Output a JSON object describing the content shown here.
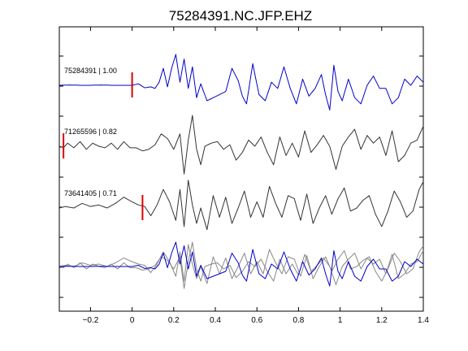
{
  "chart_data": {
    "type": "line",
    "title": "75284391.NC.JFP.EHZ",
    "xlabel": "",
    "ylabel": "",
    "xlim": [
      -0.35,
      1.4
    ],
    "x_ticks": [
      -0.2,
      0,
      0.2,
      0.4,
      0.6,
      0.8,
      1,
      1.2,
      1.4
    ],
    "x_tick_labels": [
      "−0.2",
      "0",
      "0.2",
      "0.4",
      "0.6",
      "0.8",
      "1",
      "1.2",
      "1.4"
    ],
    "grid": false,
    "legend": "none",
    "colors": {
      "reference": "#0000cc",
      "trace": "#333333",
      "overlay": "#888888",
      "pick": "#dd0000"
    },
    "sample_step": 0.01,
    "series": [
      {
        "label": "75284391 | 1.00",
        "color": "#0000cc",
        "pick_time": 0.0,
        "x": [
          -0.35,
          -0.3,
          -0.25,
          -0.2,
          -0.15,
          -0.1,
          -0.05,
          0.0,
          0.03,
          0.06,
          0.09,
          0.11,
          0.13,
          0.15,
          0.17,
          0.19,
          0.21,
          0.23,
          0.25,
          0.27,
          0.29,
          0.31,
          0.33,
          0.36,
          0.39,
          0.42,
          0.45,
          0.48,
          0.51,
          0.53,
          0.55,
          0.58,
          0.61,
          0.64,
          0.67,
          0.7,
          0.73,
          0.76,
          0.79,
          0.82,
          0.85,
          0.88,
          0.91,
          0.93,
          0.95,
          0.97,
          0.99,
          1.01,
          1.04,
          1.07,
          1.1,
          1.13,
          1.16,
          1.19,
          1.22,
          1.25,
          1.28,
          1.31,
          1.34,
          1.37,
          1.4
        ],
        "y": [
          0.0,
          0.01,
          0.0,
          0.0,
          0.01,
          0.0,
          0.0,
          0.0,
          0.05,
          -0.08,
          -0.05,
          -0.1,
          0.1,
          0.55,
          -0.05,
          0.55,
          1.0,
          0.1,
          0.85,
          -0.1,
          0.6,
          -0.4,
          0.05,
          -0.5,
          -0.4,
          -0.3,
          -0.2,
          0.55,
          0.15,
          -0.35,
          -0.6,
          0.7,
          -0.3,
          -0.5,
          0.1,
          -0.1,
          0.6,
          -0.1,
          -0.6,
          0.2,
          -0.35,
          -0.1,
          0.35,
          -0.3,
          -0.8,
          0.65,
          -0.2,
          -0.5,
          0.2,
          -0.4,
          -0.6,
          0.0,
          0.3,
          -0.1,
          -0.1,
          -0.6,
          -0.4,
          0.2,
          0.0,
          0.3,
          0.1
        ]
      },
      {
        "label": "71265596 | 0.82",
        "color": "#333333",
        "pick_time": -0.33,
        "x": [
          -0.35,
          -0.33,
          -0.31,
          -0.28,
          -0.25,
          -0.22,
          -0.19,
          -0.16,
          -0.13,
          -0.1,
          -0.07,
          -0.04,
          -0.01,
          0.02,
          0.05,
          0.08,
          0.11,
          0.14,
          0.17,
          0.2,
          0.23,
          0.25,
          0.27,
          0.29,
          0.31,
          0.33,
          0.35,
          0.38,
          0.41,
          0.44,
          0.47,
          0.5,
          0.53,
          0.56,
          0.59,
          0.62,
          0.65,
          0.68,
          0.71,
          0.74,
          0.77,
          0.8,
          0.83,
          0.86,
          0.89,
          0.92,
          0.95,
          0.98,
          1.01,
          1.04,
          1.07,
          1.1,
          1.13,
          1.16,
          1.19,
          1.22,
          1.25,
          1.28,
          1.31,
          1.34,
          1.37,
          1.4
        ],
        "y": [
          0.0,
          -0.05,
          0.1,
          -0.05,
          0.15,
          -0.1,
          0.1,
          0.0,
          -0.05,
          0.1,
          -0.1,
          0.15,
          -0.05,
          -0.05,
          -0.15,
          -0.1,
          0.05,
          0.4,
          0.25,
          -0.1,
          0.4,
          -0.9,
          0.2,
          1.0,
          -0.1,
          -0.6,
          0.0,
          0.1,
          0.15,
          -0.1,
          0.05,
          -0.45,
          -0.2,
          0.2,
          0.0,
          0.3,
          -0.2,
          -0.6,
          0.3,
          -0.3,
          0.1,
          -0.35,
          0.5,
          -0.2,
          0.05,
          0.35,
          0.0,
          -0.75,
          0.0,
          0.3,
          0.55,
          -0.1,
          0.35,
          0.1,
          0.3,
          -0.3,
          0.5,
          -0.5,
          -0.3,
          0.1,
          0.2,
          0.65
        ]
      },
      {
        "label": "73641405 | 0.71",
        "color": "#333333",
        "pick_time": 0.05,
        "x": [
          -0.35,
          -0.32,
          -0.28,
          -0.24,
          -0.2,
          -0.16,
          -0.12,
          -0.08,
          -0.04,
          0.0,
          0.03,
          0.06,
          0.09,
          0.12,
          0.15,
          0.18,
          0.21,
          0.23,
          0.25,
          0.27,
          0.29,
          0.31,
          0.33,
          0.36,
          0.39,
          0.42,
          0.45,
          0.48,
          0.51,
          0.54,
          0.57,
          0.6,
          0.63,
          0.66,
          0.69,
          0.72,
          0.75,
          0.78,
          0.81,
          0.84,
          0.87,
          0.9,
          0.93,
          0.96,
          0.99,
          1.02,
          1.05,
          1.08,
          1.11,
          1.14,
          1.17,
          1.2,
          1.23,
          1.26,
          1.29,
          1.32,
          1.35,
          1.38,
          1.4
        ],
        "y": [
          0.0,
          0.05,
          0.0,
          0.15,
          0.05,
          0.1,
          0.0,
          0.15,
          0.35,
          0.2,
          0.1,
          0.05,
          -0.25,
          0.1,
          0.6,
          0.2,
          -0.4,
          0.6,
          -0.6,
          0.9,
          0.1,
          -0.5,
          0.0,
          -0.7,
          0.4,
          -0.3,
          0.35,
          -0.5,
          0.0,
          0.55,
          -0.3,
          0.2,
          -0.3,
          0.7,
          0.15,
          -0.3,
          0.4,
          0.3,
          -0.4,
          0.45,
          -0.5,
          0.0,
          0.4,
          -0.2,
          0.3,
          0.65,
          -0.1,
          0.0,
          0.25,
          0.4,
          -0.2,
          -0.6,
          -0.1,
          0.55,
          0.2,
          -0.3,
          -0.1,
          0.6,
          0.85
        ]
      }
    ]
  }
}
